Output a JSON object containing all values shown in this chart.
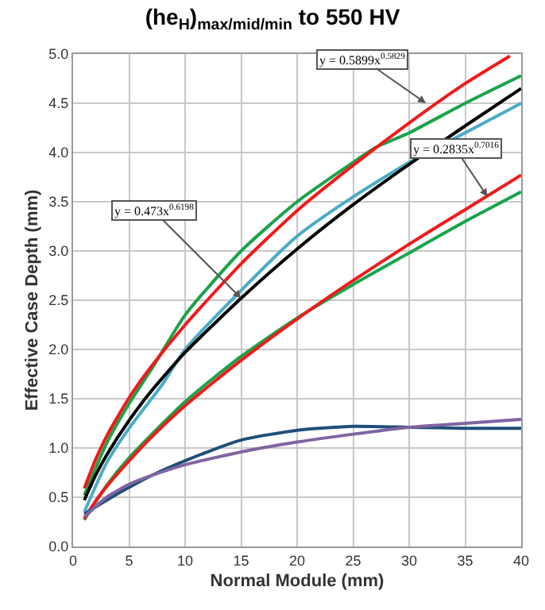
{
  "chart_data": {
    "type": "line",
    "title": "(he$_{H}$)$_{max/mid/min}$ to 550 HV",
    "xlabel": "Normal Module (mm)",
    "ylabel": "Effective Case Depth (mm)",
    "xlim": [
      0,
      40
    ],
    "xticks": [
      0,
      5,
      10,
      15,
      20,
      25,
      30,
      35,
      40
    ],
    "ylim": [
      0,
      5
    ],
    "yticks": [
      {
        "value": 0,
        "label": "0.0"
      },
      {
        "value": 0.5,
        "label": "0.5"
      },
      {
        "value": 1,
        "label": "1.0"
      },
      {
        "value": 1.5,
        "label": "1.5"
      },
      {
        "value": 2,
        "label": "2.0"
      },
      {
        "value": 2.5,
        "label": "2.5"
      },
      {
        "value": 3,
        "label": "3.0"
      },
      {
        "value": 3.5,
        "label": "3.5"
      },
      {
        "value": 4,
        "label": "4.0"
      },
      {
        "value": 4.5,
        "label": "4.5"
      },
      {
        "value": 5,
        "label": "5.0"
      }
    ],
    "grid": true,
    "marker": "none",
    "line_style": "solid",
    "series": [
      {
        "color": "#1aa34a",
        "x": [
          1,
          3,
          5,
          7,
          10,
          15,
          20,
          25,
          27,
          30,
          35,
          40
        ],
        "values": [
          0.52,
          1.05,
          1.45,
          1.8,
          2.35,
          3.0,
          3.5,
          3.9,
          4.05,
          4.2,
          4.5,
          4.78
        ]
      },
      {
        "color": "#f01a1a",
        "x": [
          1,
          2,
          3,
          5,
          7,
          10,
          15,
          20,
          25,
          30,
          35,
          39
        ],
        "values": [
          0.59,
          0.88,
          1.12,
          1.51,
          1.83,
          2.25,
          2.87,
          3.41,
          3.87,
          4.3,
          4.7,
          4.98
        ]
      },
      {
        "color": "#4bacc6",
        "x": [
          1,
          3,
          5,
          8,
          10,
          15,
          20,
          25,
          30,
          35,
          40
        ],
        "values": [
          0.35,
          0.85,
          1.2,
          1.65,
          2.0,
          2.6,
          3.15,
          3.55,
          3.9,
          4.2,
          4.5
        ]
      },
      {
        "color": "#000000",
        "x": [
          1,
          2,
          3,
          5,
          7,
          10,
          15,
          20,
          25,
          30,
          35,
          40
        ],
        "values": [
          0.47,
          0.72,
          0.93,
          1.28,
          1.58,
          1.97,
          2.52,
          3.02,
          3.47,
          3.88,
          4.27,
          4.65
        ]
      },
      {
        "color": "#1aa34a",
        "x": [
          1,
          3,
          5,
          10,
          15,
          20,
          25,
          30,
          35,
          40
        ],
        "values": [
          0.27,
          0.62,
          0.9,
          1.47,
          1.93,
          2.32,
          2.66,
          2.98,
          3.3,
          3.6
        ]
      },
      {
        "color": "#f01a1a",
        "x": [
          1,
          2,
          3,
          5,
          7,
          10,
          15,
          20,
          25,
          30,
          35,
          40
        ],
        "values": [
          0.28,
          0.46,
          0.61,
          0.87,
          1.11,
          1.43,
          1.89,
          2.31,
          2.7,
          3.07,
          3.42,
          3.77
        ]
      },
      {
        "color": "#1f4e79",
        "x": [
          1,
          3,
          5,
          7,
          10,
          15,
          20,
          25,
          30,
          35,
          40
        ],
        "values": [
          0.33,
          0.47,
          0.6,
          0.72,
          0.87,
          1.08,
          1.18,
          1.22,
          1.21,
          1.2,
          1.2
        ]
      },
      {
        "color": "#8064a2",
        "x": [
          1,
          3,
          5,
          7,
          10,
          15,
          20,
          25,
          30,
          35,
          40
        ],
        "values": [
          0.3,
          0.5,
          0.63,
          0.72,
          0.83,
          0.96,
          1.06,
          1.14,
          1.21,
          1.25,
          1.29
        ]
      }
    ],
    "annotations": [
      {
        "text": "y = 0.5899x$^{0.5829}$",
        "x": 31.5,
        "y": 4.5
      },
      {
        "text": "y = 0.473x$^{0.6198}$",
        "x": 15,
        "y": 2.52
      },
      {
        "text": "y = 0.2835x$^{0.7016}$",
        "x": 37,
        "y": 3.55
      }
    ]
  }
}
